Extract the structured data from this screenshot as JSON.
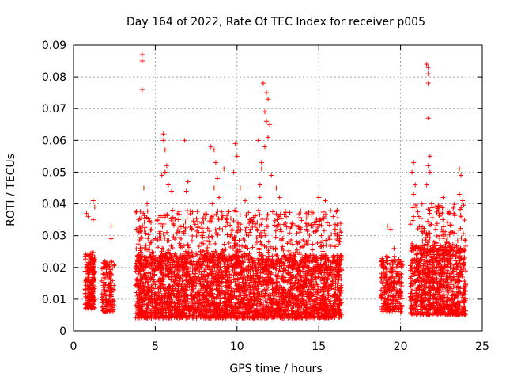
{
  "chart_data": {
    "type": "scatter",
    "title": "Day 164 of 2022, Rate Of TEC Index for receiver p005",
    "xlabel": "GPS time / hours",
    "ylabel": "ROTI / TECUs",
    "xlim": [
      0,
      25
    ],
    "ylim": [
      0,
      0.09
    ],
    "xticks": [
      0,
      5,
      10,
      15,
      20,
      25
    ],
    "yticks": [
      0,
      0.01,
      0.02,
      0.03,
      0.04,
      0.05,
      0.06,
      0.07,
      0.08,
      0.09
    ],
    "grid": true,
    "marker": "plus",
    "color": "#ff0000",
    "series": [
      {
        "name": "",
        "bands": [
          {
            "x": [
              0.7,
              1.3
            ],
            "y": [
              0.007,
              0.025
            ],
            "n": 220
          },
          {
            "x": [
              1.7,
              2.5
            ],
            "y": [
              0.006,
              0.022
            ],
            "n": 140
          },
          {
            "x": [
              3.8,
              16.4
            ],
            "y": [
              0.004,
              0.024
            ],
            "n": 3200
          },
          {
            "x": [
              3.8,
              16.4
            ],
            "y": [
              0.02,
              0.038
            ],
            "n": 700
          },
          {
            "x": [
              18.8,
              20.1
            ],
            "y": [
              0.006,
              0.024
            ],
            "n": 260
          },
          {
            "x": [
              20.6,
              24.0
            ],
            "y": [
              0.005,
              0.027
            ],
            "n": 900
          },
          {
            "x": [
              20.6,
              24.0
            ],
            "y": [
              0.025,
              0.04
            ],
            "n": 140
          }
        ],
        "points": [
          [
            0.8,
            0.037
          ],
          [
            0.9,
            0.036
          ],
          [
            1.2,
            0.041
          ],
          [
            1.3,
            0.039
          ],
          [
            1.2,
            0.035
          ],
          [
            2.3,
            0.033
          ],
          [
            2.3,
            0.029
          ],
          [
            4.2,
            0.087
          ],
          [
            4.2,
            0.085
          ],
          [
            4.2,
            0.076
          ],
          [
            4.5,
            0.04
          ],
          [
            4.3,
            0.045
          ],
          [
            5.5,
            0.062
          ],
          [
            5.5,
            0.06
          ],
          [
            5.6,
            0.057
          ],
          [
            5.7,
            0.052
          ],
          [
            5.6,
            0.05
          ],
          [
            5.4,
            0.049
          ],
          [
            5.8,
            0.046
          ],
          [
            6.0,
            0.044
          ],
          [
            6.8,
            0.06
          ],
          [
            7.0,
            0.047
          ],
          [
            6.9,
            0.044
          ],
          [
            8.4,
            0.058
          ],
          [
            8.6,
            0.057
          ],
          [
            8.7,
            0.053
          ],
          [
            8.8,
            0.048
          ],
          [
            8.6,
            0.045
          ],
          [
            8.9,
            0.042
          ],
          [
            9.2,
            0.051
          ],
          [
            8.5,
            0.04
          ],
          [
            9.9,
            0.059
          ],
          [
            10.0,
            0.055
          ],
          [
            9.8,
            0.05
          ],
          [
            10.2,
            0.045
          ],
          [
            10.5,
            0.041
          ],
          [
            11.6,
            0.078
          ],
          [
            11.8,
            0.075
          ],
          [
            11.9,
            0.073
          ],
          [
            11.7,
            0.069
          ],
          [
            11.8,
            0.066
          ],
          [
            12.0,
            0.065
          ],
          [
            11.9,
            0.061
          ],
          [
            11.7,
            0.058
          ],
          [
            11.5,
            0.053
          ],
          [
            11.5,
            0.051
          ],
          [
            11.3,
            0.06
          ],
          [
            11.4,
            0.046
          ],
          [
            11.4,
            0.042
          ],
          [
            12.1,
            0.049
          ],
          [
            12.4,
            0.045
          ],
          [
            12.6,
            0.042
          ],
          [
            15.0,
            0.042
          ],
          [
            15.4,
            0.041
          ],
          [
            16.0,
            0.032
          ],
          [
            19.2,
            0.033
          ],
          [
            19.4,
            0.032
          ],
          [
            19.6,
            0.026
          ],
          [
            20.8,
            0.053
          ],
          [
            20.7,
            0.05
          ],
          [
            20.9,
            0.046
          ],
          [
            20.8,
            0.043
          ],
          [
            20.8,
            0.036
          ],
          [
            21.6,
            0.084
          ],
          [
            21.7,
            0.083
          ],
          [
            21.7,
            0.081
          ],
          [
            21.7,
            0.078
          ],
          [
            21.7,
            0.067
          ],
          [
            21.8,
            0.055
          ],
          [
            21.7,
            0.052
          ],
          [
            21.8,
            0.05
          ],
          [
            21.6,
            0.046
          ],
          [
            21.9,
            0.04
          ],
          [
            21.8,
            0.038
          ],
          [
            22.4,
            0.037
          ],
          [
            22.6,
            0.042
          ],
          [
            23.6,
            0.051
          ],
          [
            23.7,
            0.049
          ],
          [
            23.6,
            0.043
          ],
          [
            23.8,
            0.041
          ],
          [
            23.7,
            0.036
          ]
        ]
      }
    ]
  }
}
